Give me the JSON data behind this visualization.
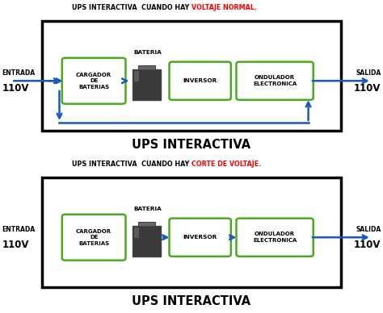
{
  "bg_color": "#ffffff",
  "diagram1": {
    "title_black": "UPS INTERACTIVA  CUANDO HAY ",
    "title_red": "VOLTAJE NORMAL.",
    "footer": "UPS INTERACTIVA",
    "green_border": "#4aaa20",
    "arrow_color": "#1a5abf",
    "has_return_arrow": true
  },
  "diagram2": {
    "title_black": "UPS INTERACTIVA  CUANDO HAY ",
    "title_red": "CORTE DE VOLTAJE.",
    "footer": "UPS INTERACTIVA",
    "green_border": "#4aaa20",
    "arrow_color": "#1a5abf",
    "has_return_arrow": false
  }
}
